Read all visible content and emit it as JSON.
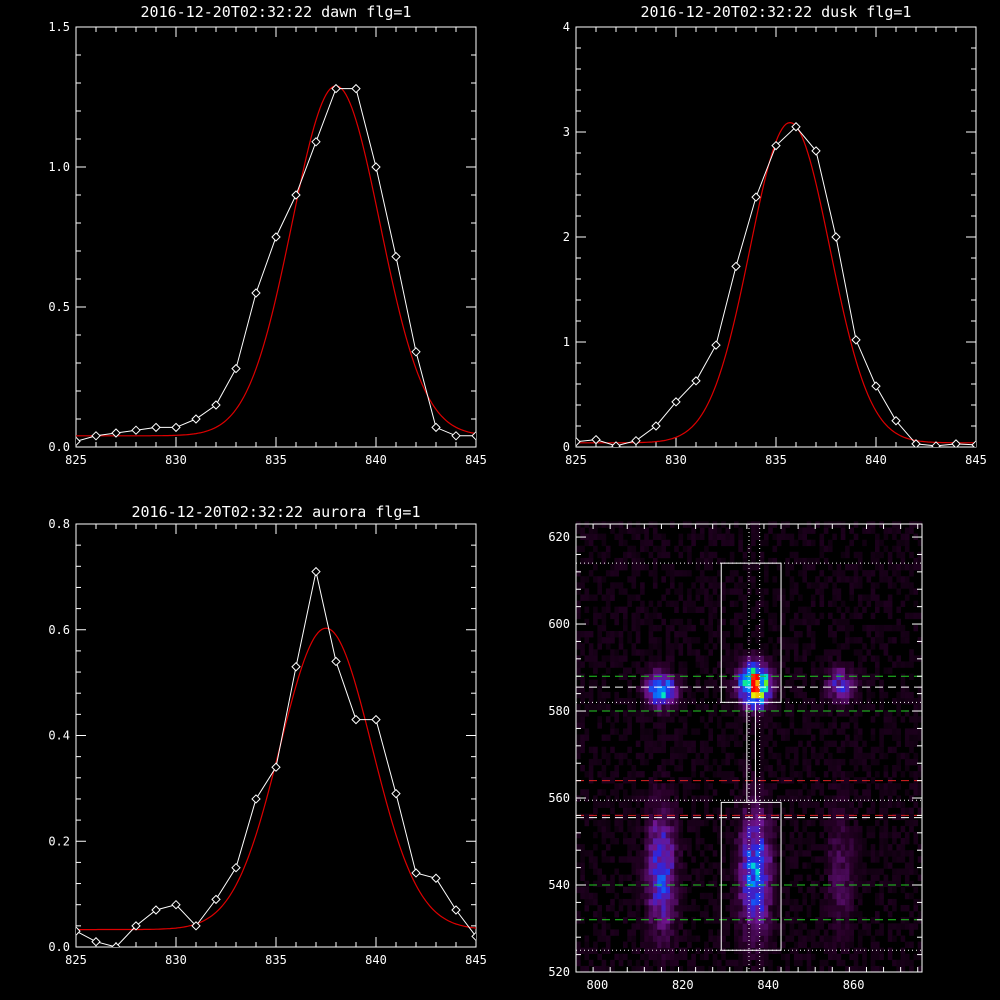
{
  "colors": {
    "background": "#000000",
    "axes": "#ffffff",
    "data": "#ffffff",
    "fit": "#dd0000",
    "guide_green": "#22cc22",
    "guide_red": "#dd2222",
    "guide_white": "#ffffff"
  },
  "chart_data": [
    {
      "type": "line",
      "title": "2016-12-20T02:32:22 dawn flg=1",
      "xlim": [
        825,
        845
      ],
      "ylim": [
        0,
        1.5
      ],
      "xticks": [
        "825",
        "830",
        "835",
        "840",
        "845"
      ],
      "yticks": [
        "0.0",
        "0.5",
        "1.0",
        "1.5"
      ],
      "series": [
        {
          "marker": "diamond",
          "color": "#ffffff",
          "x": [
            825,
            826,
            827,
            828,
            829,
            830,
            831,
            832,
            833,
            834,
            835,
            836,
            837,
            838,
            839,
            840,
            841,
            842,
            843,
            844,
            845
          ],
          "y": [
            0.02,
            0.04,
            0.05,
            0.06,
            0.07,
            0.07,
            0.1,
            0.15,
            0.28,
            0.55,
            0.75,
            0.9,
            1.09,
            1.28,
            1.28,
            1.0,
            0.68,
            0.34,
            0.07,
            0.04,
            0.04
          ]
        },
        {
          "marker": "none",
          "color": "#dd0000",
          "fit": "gaussian",
          "peak": 1.25,
          "center": 838.0,
          "sigma": 2.2,
          "offset": 0.04
        }
      ]
    },
    {
      "type": "line",
      "title": "2016-12-20T02:32:22 dusk flg=1",
      "xlim": [
        825,
        845
      ],
      "ylim": [
        0,
        4
      ],
      "xticks": [
        "825",
        "830",
        "835",
        "840",
        "845"
      ],
      "yticks": [
        "0",
        "1",
        "2",
        "3",
        "4"
      ],
      "series": [
        {
          "marker": "diamond",
          "color": "#ffffff",
          "x": [
            825,
            826,
            827,
            828,
            829,
            830,
            831,
            832,
            833,
            834,
            835,
            836,
            837,
            838,
            839,
            840,
            841,
            842,
            843,
            844,
            845
          ],
          "y": [
            0.05,
            0.07,
            0.01,
            0.06,
            0.2,
            0.43,
            0.63,
            0.97,
            1.72,
            2.38,
            2.87,
            3.05,
            2.82,
            2.0,
            1.02,
            0.58,
            0.25,
            0.03,
            0.01,
            0.03,
            0.02
          ]
        },
        {
          "marker": "none",
          "color": "#dd0000",
          "fit": "gaussian",
          "peak": 3.05,
          "center": 835.7,
          "sigma": 2.0,
          "offset": 0.04
        }
      ]
    },
    {
      "type": "line",
      "title": "2016-12-20T02:32:22 aurora flg=1",
      "xlim": [
        825,
        845
      ],
      "ylim": [
        0,
        0.8
      ],
      "xticks": [
        "825",
        "830",
        "835",
        "840",
        "845"
      ],
      "yticks": [
        "0.0",
        "0.2",
        "0.4",
        "0.6",
        "0.8"
      ],
      "series": [
        {
          "marker": "diamond",
          "color": "#ffffff",
          "x": [
            825,
            826,
            827,
            828,
            829,
            830,
            831,
            832,
            833,
            834,
            835,
            836,
            837,
            838,
            839,
            840,
            841,
            842,
            843,
            844,
            845
          ],
          "y": [
            0.03,
            0.01,
            0.0,
            0.04,
            0.07,
            0.08,
            0.04,
            0.09,
            0.15,
            0.28,
            0.34,
            0.53,
            0.71,
            0.54,
            0.43,
            0.43,
            0.29,
            0.14,
            0.13,
            0.07,
            0.02
          ]
        },
        {
          "marker": "none",
          "color": "#dd0000",
          "fit": "gaussian",
          "peak": 0.57,
          "center": 837.5,
          "sigma": 2.3,
          "offset": 0.033
        }
      ]
    },
    {
      "type": "heatmap",
      "title": "",
      "xlim": [
        795,
        876
      ],
      "ylim": [
        520,
        623
      ],
      "xticks": [
        "800",
        "820",
        "840",
        "860"
      ],
      "yticks": [
        "520",
        "540",
        "560",
        "580",
        "600",
        "620"
      ],
      "colormap": "rainbow-on-black",
      "blobs": [
        {
          "x": 815,
          "y": 585,
          "sx": 2.2,
          "sy": 2.5,
          "amp": 0.55
        },
        {
          "x": 837,
          "y": 586,
          "sx": 2.3,
          "sy": 3.0,
          "amp": 1.0
        },
        {
          "x": 857,
          "y": 586,
          "sx": 2.0,
          "sy": 2.5,
          "amp": 0.3
        },
        {
          "x": 815,
          "y": 543,
          "sx": 2.2,
          "sy": 9.0,
          "amp": 0.35
        },
        {
          "x": 837,
          "y": 543,
          "sx": 2.3,
          "sy": 9.0,
          "amp": 0.45
        },
        {
          "x": 857,
          "y": 543,
          "sx": 2.0,
          "sy": 9.0,
          "amp": 0.12
        }
      ],
      "boxes": [
        {
          "x0": 829,
          "x1": 843,
          "y0": 582,
          "y1": 614
        },
        {
          "x0": 829,
          "x1": 843,
          "y0": 525,
          "y1": 559
        }
      ],
      "connector": {
        "x0": 835,
        "x1": 837,
        "y0": 559,
        "y1": 582
      },
      "guides_h": [
        {
          "y": 614,
          "color": "#ffffff",
          "style": "dotted"
        },
        {
          "y": 588,
          "color": "#22cc22",
          "style": "dashed"
        },
        {
          "y": 585.5,
          "color": "#ffffff",
          "style": "dashed"
        },
        {
          "y": 582,
          "color": "#ffffff",
          "style": "dotted"
        },
        {
          "y": 580,
          "color": "#22cc22",
          "style": "dashed"
        },
        {
          "y": 564,
          "color": "#dd2222",
          "style": "dashed"
        },
        {
          "y": 559.5,
          "color": "#ffffff",
          "style": "dotted"
        },
        {
          "y": 556,
          "color": "#dd2222",
          "style": "dashed"
        },
        {
          "y": 555.5,
          "color": "#ffffff",
          "style": "dashed"
        },
        {
          "y": 540,
          "color": "#22cc22",
          "style": "dashed"
        },
        {
          "y": 532,
          "color": "#22cc22",
          "style": "dashed"
        },
        {
          "y": 525,
          "color": "#ffffff",
          "style": "dotted"
        }
      ],
      "guides_v": [
        {
          "x": 835.5,
          "color": "#ffffff",
          "style": "dotted"
        },
        {
          "x": 838.0,
          "color": "#ffffff",
          "style": "dotted"
        }
      ]
    }
  ]
}
